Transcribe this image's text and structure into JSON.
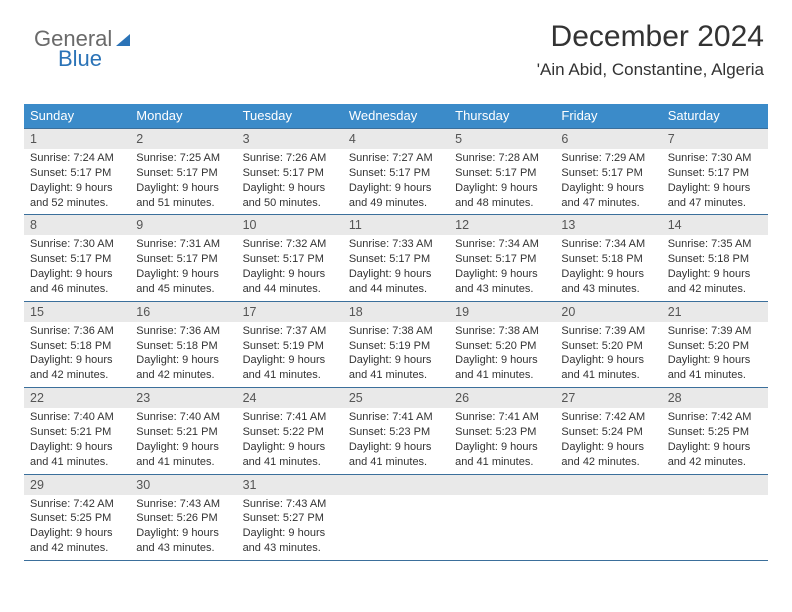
{
  "brand": {
    "word1": "General",
    "word2": "Blue"
  },
  "header": {
    "title": "December 2024",
    "subtitle": "'Ain Abid, Constantine, Algeria"
  },
  "colors": {
    "header_bg": "#3b8bc9",
    "header_text": "#ffffff",
    "rule": "#3b6f9b",
    "daynum_bg": "#e9e9e9",
    "text": "#333333",
    "brand_grey": "#6a6a6a",
    "brand_blue": "#2b73b7"
  },
  "dow": [
    "Sunday",
    "Monday",
    "Tuesday",
    "Wednesday",
    "Thursday",
    "Friday",
    "Saturday"
  ],
  "weeks": [
    [
      {
        "n": "1",
        "sr": "7:24 AM",
        "ss": "5:17 PM",
        "dl": "9 hours and 52 minutes."
      },
      {
        "n": "2",
        "sr": "7:25 AM",
        "ss": "5:17 PM",
        "dl": "9 hours and 51 minutes."
      },
      {
        "n": "3",
        "sr": "7:26 AM",
        "ss": "5:17 PM",
        "dl": "9 hours and 50 minutes."
      },
      {
        "n": "4",
        "sr": "7:27 AM",
        "ss": "5:17 PM",
        "dl": "9 hours and 49 minutes."
      },
      {
        "n": "5",
        "sr": "7:28 AM",
        "ss": "5:17 PM",
        "dl": "9 hours and 48 minutes."
      },
      {
        "n": "6",
        "sr": "7:29 AM",
        "ss": "5:17 PM",
        "dl": "9 hours and 47 minutes."
      },
      {
        "n": "7",
        "sr": "7:30 AM",
        "ss": "5:17 PM",
        "dl": "9 hours and 47 minutes."
      }
    ],
    [
      {
        "n": "8",
        "sr": "7:30 AM",
        "ss": "5:17 PM",
        "dl": "9 hours and 46 minutes."
      },
      {
        "n": "9",
        "sr": "7:31 AM",
        "ss": "5:17 PM",
        "dl": "9 hours and 45 minutes."
      },
      {
        "n": "10",
        "sr": "7:32 AM",
        "ss": "5:17 PM",
        "dl": "9 hours and 44 minutes."
      },
      {
        "n": "11",
        "sr": "7:33 AM",
        "ss": "5:17 PM",
        "dl": "9 hours and 44 minutes."
      },
      {
        "n": "12",
        "sr": "7:34 AM",
        "ss": "5:17 PM",
        "dl": "9 hours and 43 minutes."
      },
      {
        "n": "13",
        "sr": "7:34 AM",
        "ss": "5:18 PM",
        "dl": "9 hours and 43 minutes."
      },
      {
        "n": "14",
        "sr": "7:35 AM",
        "ss": "5:18 PM",
        "dl": "9 hours and 42 minutes."
      }
    ],
    [
      {
        "n": "15",
        "sr": "7:36 AM",
        "ss": "5:18 PM",
        "dl": "9 hours and 42 minutes."
      },
      {
        "n": "16",
        "sr": "7:36 AM",
        "ss": "5:18 PM",
        "dl": "9 hours and 42 minutes."
      },
      {
        "n": "17",
        "sr": "7:37 AM",
        "ss": "5:19 PM",
        "dl": "9 hours and 41 minutes."
      },
      {
        "n": "18",
        "sr": "7:38 AM",
        "ss": "5:19 PM",
        "dl": "9 hours and 41 minutes."
      },
      {
        "n": "19",
        "sr": "7:38 AM",
        "ss": "5:20 PM",
        "dl": "9 hours and 41 minutes."
      },
      {
        "n": "20",
        "sr": "7:39 AM",
        "ss": "5:20 PM",
        "dl": "9 hours and 41 minutes."
      },
      {
        "n": "21",
        "sr": "7:39 AM",
        "ss": "5:20 PM",
        "dl": "9 hours and 41 minutes."
      }
    ],
    [
      {
        "n": "22",
        "sr": "7:40 AM",
        "ss": "5:21 PM",
        "dl": "9 hours and 41 minutes."
      },
      {
        "n": "23",
        "sr": "7:40 AM",
        "ss": "5:21 PM",
        "dl": "9 hours and 41 minutes."
      },
      {
        "n": "24",
        "sr": "7:41 AM",
        "ss": "5:22 PM",
        "dl": "9 hours and 41 minutes."
      },
      {
        "n": "25",
        "sr": "7:41 AM",
        "ss": "5:23 PM",
        "dl": "9 hours and 41 minutes."
      },
      {
        "n": "26",
        "sr": "7:41 AM",
        "ss": "5:23 PM",
        "dl": "9 hours and 41 minutes."
      },
      {
        "n": "27",
        "sr": "7:42 AM",
        "ss": "5:24 PM",
        "dl": "9 hours and 42 minutes."
      },
      {
        "n": "28",
        "sr": "7:42 AM",
        "ss": "5:25 PM",
        "dl": "9 hours and 42 minutes."
      }
    ],
    [
      {
        "n": "29",
        "sr": "7:42 AM",
        "ss": "5:25 PM",
        "dl": "9 hours and 42 minutes."
      },
      {
        "n": "30",
        "sr": "7:43 AM",
        "ss": "5:26 PM",
        "dl": "9 hours and 43 minutes."
      },
      {
        "n": "31",
        "sr": "7:43 AM",
        "ss": "5:27 PM",
        "dl": "9 hours and 43 minutes."
      },
      null,
      null,
      null,
      null
    ]
  ],
  "labels": {
    "sunrise": "Sunrise: ",
    "sunset": "Sunset: ",
    "daylight": "Daylight: "
  }
}
